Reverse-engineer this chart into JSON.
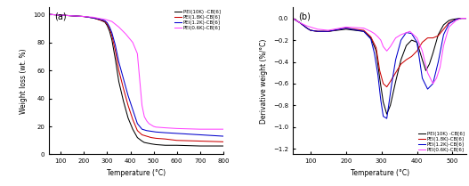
{
  "panel_a": {
    "title": "(a)",
    "xlabel": "Temperature (°C)",
    "ylabel": "Weight loss (wt. %)",
    "xlim": [
      50,
      800
    ],
    "ylim": [
      0,
      105
    ],
    "xticks": [
      100,
      200,
      300,
      400,
      500,
      600,
      700,
      800
    ],
    "yticks": [
      0,
      20,
      40,
      60,
      80,
      100
    ],
    "legend": [
      "PEI(10K) -CB[6]",
      "PEI(1.8K)-CB[6]",
      "PEI(1.2K)-CB[6]",
      "PEI(0.6K)-CB[6]"
    ],
    "colors": [
      "#000000",
      "#cc0000",
      "#0000cc",
      "#ff44ff"
    ],
    "series": {
      "PEI10K": {
        "x": [
          50,
          100,
          150,
          200,
          240,
          270,
          290,
          300,
          310,
          320,
          335,
          350,
          370,
          390,
          410,
          430,
          450,
          460,
          475,
          490,
          510,
          550,
          600,
          700,
          800
        ],
        "y": [
          100,
          99.5,
          99,
          98.5,
          97.5,
          96,
          94.5,
          92,
          88,
          82,
          68,
          52,
          38,
          26,
          18,
          12,
          9.5,
          8.5,
          8,
          7.5,
          7,
          6.5,
          6.5,
          6,
          6
        ]
      },
      "PEI18K": {
        "x": [
          50,
          100,
          150,
          200,
          240,
          270,
          290,
          300,
          310,
          320,
          335,
          350,
          370,
          390,
          410,
          430,
          450,
          470,
          490,
          510,
          550,
          600,
          700,
          800
        ],
        "y": [
          100,
          99.5,
          99,
          98.5,
          97.5,
          96,
          95,
          93,
          90,
          85,
          74,
          60,
          47,
          35,
          25,
          17,
          14,
          13,
          12,
          11.5,
          11,
          10,
          9.5,
          9
        ]
      },
      "PEI12K": {
        "x": [
          50,
          100,
          150,
          200,
          240,
          270,
          290,
          300,
          310,
          320,
          335,
          350,
          370,
          390,
          410,
          430,
          450,
          470,
          490,
          510,
          550,
          600,
          700,
          800
        ],
        "y": [
          100,
          99.5,
          99,
          98.5,
          97.5,
          96.5,
          95.5,
          94,
          91,
          87,
          78,
          66,
          54,
          42,
          32,
          22,
          18,
          17,
          16.5,
          16,
          15.5,
          15,
          14,
          13
        ]
      },
      "PEI06K": {
        "x": [
          50,
          100,
          150,
          200,
          240,
          270,
          290,
          300,
          310,
          320,
          335,
          350,
          380,
          410,
          430,
          450,
          460,
          470,
          480,
          490,
          500,
          510,
          550,
          600,
          700,
          800
        ],
        "y": [
          100,
          99.5,
          99,
          98.5,
          98,
          97,
          96.5,
          96,
          95.5,
          95,
          93,
          91,
          86,
          80,
          72,
          35,
          27,
          24,
          22,
          21,
          20,
          19.5,
          19,
          18.5,
          18,
          18
        ]
      }
    }
  },
  "panel_b": {
    "title": "(b)",
    "xlabel": "Temperature (°C)",
    "ylabel": "Derivative weight (%/°C)",
    "xlim": [
      50,
      540
    ],
    "ylim": [
      -1.25,
      0.1
    ],
    "xticks": [
      100,
      200,
      300,
      400,
      500
    ],
    "yticks": [
      0.0,
      -0.2,
      -0.4,
      -0.6,
      -0.8,
      -1.0,
      -1.2
    ],
    "legend": [
      "PEI(10K) -CB[6]",
      "PEI(1.8K)-CB[6]",
      "PEI(1.2K)-CB[6]",
      "PEI(0.6K)-CB[6]"
    ],
    "colors": [
      "#000000",
      "#cc0000",
      "#0000cc",
      "#ff44ff"
    ],
    "series": {
      "PEI10K": {
        "x": [
          50,
          70,
          90,
          100,
          120,
          150,
          200,
          250,
          270,
          285,
          295,
          305,
          315,
          325,
          340,
          355,
          370,
          385,
          400,
          415,
          425,
          435,
          445,
          460,
          475,
          490,
          500,
          510,
          525,
          540
        ],
        "y": [
          0.0,
          -0.04,
          -0.09,
          -0.11,
          -0.12,
          -0.12,
          -0.1,
          -0.12,
          -0.18,
          -0.3,
          -0.55,
          -0.77,
          -0.88,
          -0.8,
          -0.58,
          -0.38,
          -0.25,
          -0.2,
          -0.22,
          -0.38,
          -0.48,
          -0.42,
          -0.32,
          -0.15,
          -0.06,
          -0.02,
          -0.01,
          -0.005,
          0.0,
          0.0
        ]
      },
      "PEI18K": {
        "x": [
          50,
          70,
          90,
          100,
          120,
          150,
          200,
          250,
          270,
          285,
          295,
          305,
          315,
          325,
          340,
          355,
          370,
          385,
          400,
          415,
          430,
          445,
          460,
          475,
          490,
          510,
          525,
          540
        ],
        "y": [
          0.0,
          -0.04,
          -0.09,
          -0.11,
          -0.12,
          -0.12,
          -0.09,
          -0.11,
          -0.17,
          -0.27,
          -0.48,
          -0.6,
          -0.63,
          -0.58,
          -0.5,
          -0.42,
          -0.38,
          -0.35,
          -0.3,
          -0.22,
          -0.18,
          -0.18,
          -0.16,
          -0.1,
          -0.04,
          -0.01,
          0.0,
          0.0
        ]
      },
      "PEI12K": {
        "x": [
          50,
          70,
          90,
          100,
          120,
          150,
          200,
          250,
          270,
          280,
          290,
          298,
          305,
          315,
          328,
          340,
          355,
          370,
          385,
          400,
          415,
          430,
          445,
          460,
          475,
          490,
          510,
          525,
          540
        ],
        "y": [
          0.0,
          -0.04,
          -0.09,
          -0.11,
          -0.12,
          -0.12,
          -0.09,
          -0.12,
          -0.19,
          -0.32,
          -0.52,
          -0.75,
          -0.9,
          -0.92,
          -0.62,
          -0.38,
          -0.2,
          -0.13,
          -0.14,
          -0.22,
          -0.55,
          -0.65,
          -0.6,
          -0.4,
          -0.15,
          -0.05,
          -0.01,
          0.0,
          0.0
        ]
      },
      "PEI06K": {
        "x": [
          50,
          70,
          90,
          100,
          120,
          150,
          200,
          250,
          270,
          280,
          290,
          298,
          305,
          315,
          325,
          340,
          355,
          380,
          400,
          415,
          430,
          445,
          455,
          465,
          475,
          490,
          510,
          525,
          540
        ],
        "y": [
          0.0,
          -0.04,
          -0.07,
          -0.08,
          -0.1,
          -0.11,
          -0.08,
          -0.09,
          -0.12,
          -0.14,
          -0.17,
          -0.2,
          -0.26,
          -0.3,
          -0.26,
          -0.18,
          -0.15,
          -0.12,
          -0.18,
          -0.3,
          -0.5,
          -0.6,
          -0.55,
          -0.45,
          -0.25,
          -0.08,
          -0.02,
          0.0,
          0.0
        ]
      }
    }
  }
}
